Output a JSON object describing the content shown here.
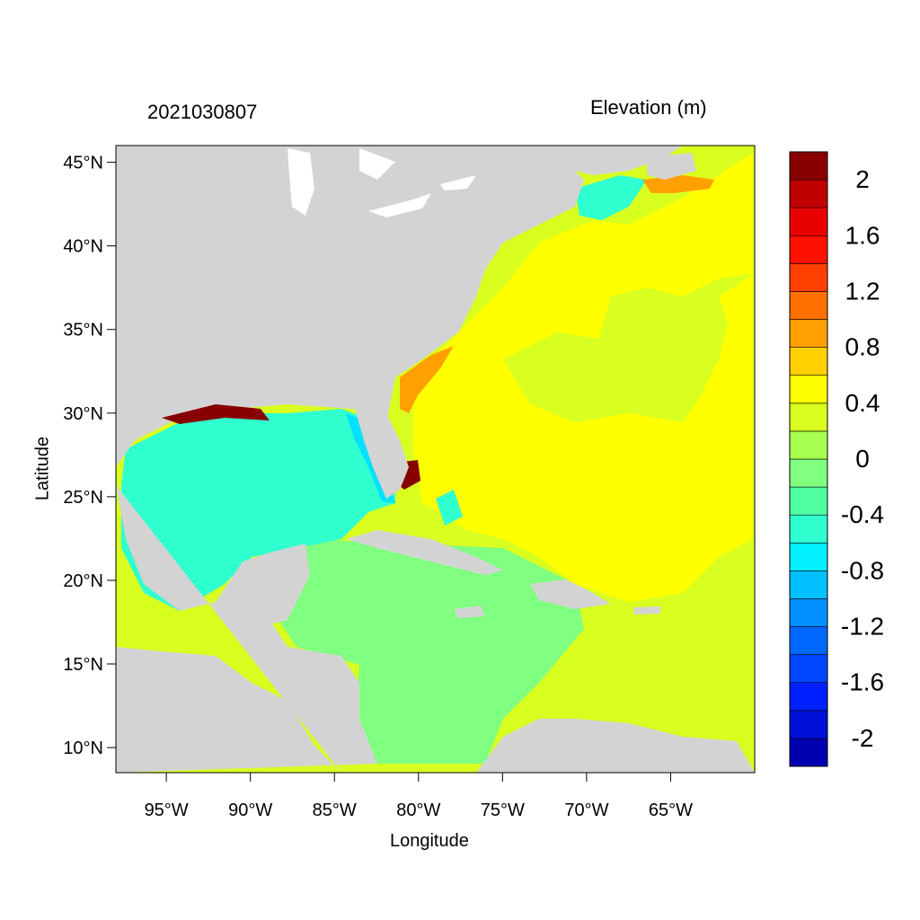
{
  "header": {
    "timestamp": "2021030807",
    "variable": "Elevation (m)"
  },
  "axes": {
    "xlabel": "Longitude",
    "ylabel": "Latitude",
    "lon_ticks": [
      {
        "value": -95,
        "label": "95°W"
      },
      {
        "value": -90,
        "label": "90°W"
      },
      {
        "value": -85,
        "label": "85°W"
      },
      {
        "value": -80,
        "label": "80°W"
      },
      {
        "value": -75,
        "label": "75°W"
      },
      {
        "value": -70,
        "label": "70°W"
      },
      {
        "value": -65,
        "label": "65°W"
      }
    ],
    "lat_ticks": [
      {
        "value": 45,
        "label": "45°N"
      },
      {
        "value": 40,
        "label": "40°N"
      },
      {
        "value": 35,
        "label": "35°N"
      },
      {
        "value": 30,
        "label": "30°N"
      },
      {
        "value": 25,
        "label": "25°N"
      },
      {
        "value": 20,
        "label": "20°N"
      },
      {
        "value": 15,
        "label": "15°N"
      },
      {
        "value": 10,
        "label": "10°N"
      }
    ],
    "lon_range": [
      -98,
      -60
    ],
    "lat_range": [
      8.5,
      46
    ]
  },
  "colorbar": {
    "colors": [
      "#0000b0",
      "#0010d8",
      "#0020ff",
      "#0046ff",
      "#0068ff",
      "#0090ff",
      "#00c0ff",
      "#00f0ff",
      "#30ffd0",
      "#50ffa0",
      "#80ff80",
      "#a8ff50",
      "#d8ff20",
      "#ffff00",
      "#ffd000",
      "#ffa000",
      "#ff7000",
      "#ff4000",
      "#ff1000",
      "#e80000",
      "#c00000",
      "#880000"
    ],
    "labels": [
      "2",
      "1.6",
      "1.2",
      "0.8",
      "0.4",
      "0",
      "-0.4",
      "-0.8",
      "-1.2",
      "-1.6",
      "-2"
    ]
  },
  "land_color": "#d3d3d3"
}
